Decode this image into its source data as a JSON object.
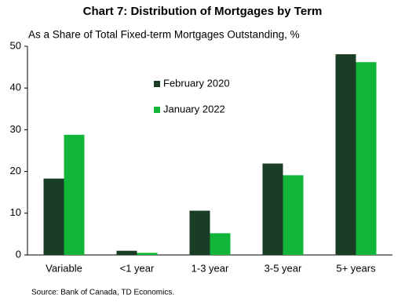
{
  "chart_data": {
    "type": "bar",
    "title": "Chart 7: Distribution of Mortgages by Term",
    "subtitle": "As a Share of Total Fixed-term Mortgages Outstanding, %",
    "source": "Source: Bank of Canada, TD Economics.",
    "categories": [
      "Variable",
      "<1 year",
      "1-3 year",
      "3-5 year",
      "5+ years"
    ],
    "series": [
      {
        "name": "February 2020",
        "color": "#1a3d26",
        "values": [
          18.3,
          1.0,
          10.6,
          21.9,
          48.1
        ]
      },
      {
        "name": "January 2022",
        "color": "#10b53a",
        "values": [
          28.8,
          0.5,
          5.2,
          19.1,
          46.2
        ]
      }
    ],
    "ylim": [
      0,
      50
    ],
    "yticks": [
      0,
      10,
      20,
      30,
      40,
      50
    ],
    "grid": false
  }
}
